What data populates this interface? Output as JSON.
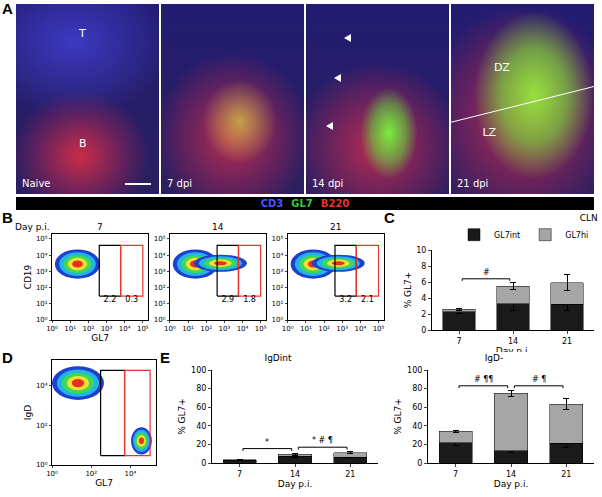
{
  "panel_labels": [
    "A",
    "B",
    "C",
    "D",
    "E"
  ],
  "images": {
    "panels": [
      {
        "caption": "Naive",
        "labels": [
          "T",
          "B"
        ]
      },
      {
        "caption": "7 dpi"
      },
      {
        "caption": "14 dpi"
      },
      {
        "caption": "21 dpi",
        "labels": [
          "DZ",
          "LZ"
        ]
      }
    ],
    "stains": [
      {
        "text": "CD3",
        "color": "#4a55ff"
      },
      {
        "text": "GL7",
        "color": "#33cc33"
      },
      {
        "text": "B220",
        "color": "#e8342c"
      }
    ]
  },
  "chart_data": [
    {
      "type": "flow",
      "title": "Day p.i.",
      "plots": [
        {
          "title": "7",
          "xlabel": "GL7",
          "ylabel": "CD19",
          "log": true,
          "xlim": [
            1,
            200000
          ],
          "ylim": [
            1,
            200000
          ],
          "xticks": [
            {
              "value": 1,
              "label": "10⁰"
            },
            {
              "value": 10,
              "label": "10¹"
            },
            {
              "value": 100,
              "label": "10²"
            },
            {
              "value": 1000,
              "label": "10³"
            },
            {
              "value": 10000,
              "label": "10⁴"
            },
            {
              "value": 100000,
              "label": "10⁵"
            }
          ],
          "yticks": [
            {
              "value": 1,
              "label": "10⁰"
            },
            {
              "value": 10,
              "label": "10¹"
            },
            {
              "value": 100,
              "label": "10²"
            },
            {
              "value": 1000,
              "label": "10³"
            },
            {
              "value": 10000,
              "label": "10⁴"
            },
            {
              "value": 100000,
              "label": "10⁵"
            }
          ],
          "gates": [
            {
              "xlim": [
                400,
                6000
              ],
              "ylim": [
                30,
                40000
              ],
              "color": "#000000",
              "value": 2.2
            },
            {
              "xlim": [
                6000,
                100000
              ],
              "ylim": [
                30,
                40000
              ],
              "color": "#e8342c",
              "value": 0.3
            }
          ]
        },
        {
          "title": "14",
          "log": true,
          "xlim": [
            1,
            200000
          ],
          "ylim": [
            1,
            200000
          ],
          "xticks": [
            {
              "value": 1,
              "label": "10⁰"
            },
            {
              "value": 10,
              "label": "10¹"
            },
            {
              "value": 100,
              "label": "10²"
            },
            {
              "value": 1000,
              "label": "10³"
            },
            {
              "value": 10000,
              "label": "10⁴"
            },
            {
              "value": 100000,
              "label": "10⁵"
            }
          ],
          "yticks": [
            {
              "value": 1,
              "label": "10⁰"
            },
            {
              "value": 10,
              "label": "10¹"
            },
            {
              "value": 100,
              "label": "10²"
            },
            {
              "value": 1000,
              "label": "10³"
            },
            {
              "value": 10000,
              "label": "10⁴"
            },
            {
              "value": 100000,
              "label": "10⁵"
            }
          ],
          "gates": [
            {
              "xlim": [
                400,
                6000
              ],
              "ylim": [
                30,
                40000
              ],
              "color": "#000000",
              "value": 2.9
            },
            {
              "xlim": [
                6000,
                100000
              ],
              "ylim": [
                30,
                40000
              ],
              "color": "#e8342c",
              "value": 1.8
            }
          ]
        },
        {
          "title": "21",
          "log": true,
          "xlim": [
            1,
            200000
          ],
          "ylim": [
            1,
            200000
          ],
          "xticks": [
            {
              "value": 1,
              "label": "10⁰"
            },
            {
              "value": 10,
              "label": "10¹"
            },
            {
              "value": 100,
              "label": "10²"
            },
            {
              "value": 1000,
              "label": "10³"
            },
            {
              "value": 10000,
              "label": "10⁴"
            },
            {
              "value": 100000,
              "label": "10⁵"
            }
          ],
          "yticks": [
            {
              "value": 1,
              "label": "10⁰"
            },
            {
              "value": 10,
              "label": "10¹"
            },
            {
              "value": 100,
              "label": "10²"
            },
            {
              "value": 1000,
              "label": "10³"
            },
            {
              "value": 10000,
              "label": "10⁴"
            },
            {
              "value": 100000,
              "label": "10⁵"
            }
          ],
          "gates": [
            {
              "xlim": [
                400,
                6000
              ],
              "ylim": [
                30,
                40000
              ],
              "color": "#000000",
              "value": 3.2
            },
            {
              "xlim": [
                6000,
                100000
              ],
              "ylim": [
                30,
                40000
              ],
              "color": "#e8342c",
              "value": 2.1
            }
          ]
        }
      ]
    },
    {
      "type": "bar",
      "title": "CLN",
      "stacked": true,
      "grid": false,
      "legend": "top right",
      "xlabel": "Day p.i.",
      "ylabel": "% GL7+",
      "categories": [
        "7",
        "14",
        "21"
      ],
      "series": [
        {
          "name": "GL7int",
          "color": "#1a1a1a",
          "values": [
            2.3,
            3.3,
            3.2
          ],
          "errors": [
            0.2,
            0.8,
            0.8
          ]
        },
        {
          "name": "GL7hi",
          "color": "#a6a6a6",
          "values": [
            0.3,
            2.2,
            2.7
          ],
          "errors": [
            0.1,
            0.4,
            1.0
          ]
        }
      ],
      "ylim": [
        0,
        10
      ],
      "yticks": [
        0,
        2,
        4,
        6,
        8,
        10
      ],
      "significance": [
        {
          "from": "7",
          "to": "14",
          "text": "#"
        }
      ]
    },
    {
      "type": "flow",
      "plots": [
        {
          "xlabel": "GL7",
          "ylabel": "IgD",
          "log": true,
          "xlim": [
            1,
            200000
          ],
          "ylim": [
            1,
            200000
          ],
          "xticks": [
            {
              "value": 1,
              "label": "10⁰"
            },
            {
              "value": 100,
              "label": "10²"
            },
            {
              "value": 10000,
              "label": "10⁴"
            }
          ],
          "yticks": [
            {
              "value": 1,
              "label": "10⁰"
            },
            {
              "value": 100,
              "label": "10²"
            },
            {
              "value": 10000,
              "label": "10⁴"
            }
          ],
          "gates": [
            {
              "xlim": [
                300,
                5000
              ],
              "ylim": [
                3,
                60000
              ],
              "color": "#000000"
            },
            {
              "xlim": [
                5000,
                100000
              ],
              "ylim": [
                3,
                60000
              ],
              "color": "#e8342c"
            }
          ]
        }
      ]
    },
    {
      "type": "bar",
      "title": "IgDint",
      "stacked": true,
      "grid": false,
      "xlabel": "Day p.i.",
      "ylabel": "% GL7+",
      "categories": [
        "7",
        "14",
        "21"
      ],
      "series": [
        {
          "name": "GL7int",
          "color": "#1a1a1a",
          "values": [
            3,
            7,
            6
          ],
          "errors": [
            0.3,
            1,
            0.5
          ]
        },
        {
          "name": "GL7hi",
          "color": "#a6a6a6",
          "values": [
            0.5,
            2.5,
            5
          ],
          "errors": [
            0.2,
            1,
            1
          ]
        }
      ],
      "ylim": [
        0,
        100
      ],
      "yticks": [
        0,
        20,
        40,
        60,
        80,
        100
      ],
      "significance": [
        {
          "from": "7",
          "to": "14",
          "text": "*"
        },
        {
          "from": "14",
          "to": "21",
          "text": "* # ¶"
        }
      ]
    },
    {
      "type": "bar",
      "title": "IgD-",
      "stacked": true,
      "grid": false,
      "xlabel": "Day p.i.",
      "ylabel": "% GL7+",
      "categories": [
        "7",
        "14",
        "21"
      ],
      "series": [
        {
          "name": "GL7int",
          "color": "#1a1a1a",
          "values": [
            22,
            13,
            21
          ],
          "errors": [
            3,
            1.5,
            4
          ]
        },
        {
          "name": "GL7hi",
          "color": "#a6a6a6",
          "values": [
            12,
            62,
            42
          ],
          "errors": [
            1,
            3,
            6
          ]
        }
      ],
      "ylim": [
        0,
        100
      ],
      "yticks": [
        0,
        20,
        40,
        60,
        80,
        100
      ],
      "significance": [
        {
          "from": "7",
          "to": "14",
          "text": "# ¶¶"
        },
        {
          "from": "14",
          "to": "21",
          "text": "# ¶"
        }
      ]
    }
  ]
}
